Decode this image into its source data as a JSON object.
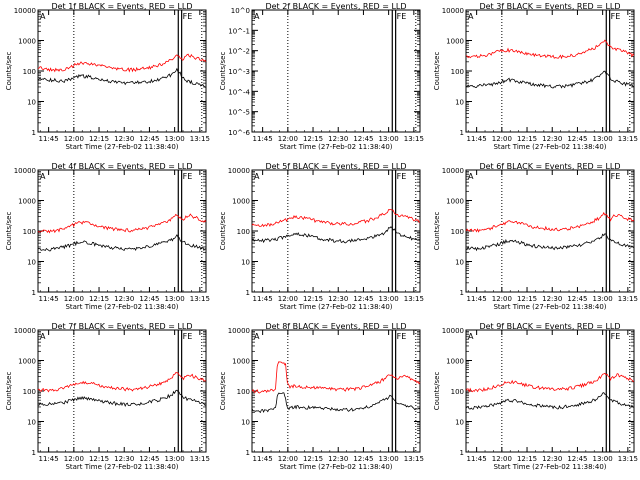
{
  "figure": {
    "xlabel": "Start Time (27-Feb-02 11:38:40)",
    "ylabel": "Counts/sec",
    "time_ticks": [
      "11:45",
      "12:00",
      "12:15",
      "12:30",
      "12:45",
      "13:00",
      "13:15"
    ],
    "log_ticks": [
      "1",
      "10",
      "100",
      "1000",
      "10000"
    ],
    "log_ticks_empty": [
      "10^0",
      "10^-1",
      "10^-2",
      "10^-3",
      "10^-4",
      "10^-5",
      "10^-6"
    ],
    "marker_labels": [
      "A",
      "FE",
      "E"
    ],
    "colors": {
      "events": "#000000",
      "lld": "#ff0000",
      "axes": "#000000"
    }
  },
  "chart_data": [
    {
      "type": "line",
      "title": "Det 1f BLACK = Events, RED = LLD",
      "x_range_min": [
        0,
        100
      ],
      "scale": "log",
      "ylim": [
        1,
        10000
      ],
      "series": [
        {
          "name": "BLACK = Events",
          "x": [
            0,
            5,
            10,
            15,
            20,
            25,
            30,
            35,
            40,
            45,
            50,
            55,
            60,
            65,
            70,
            75,
            80,
            82,
            84,
            86,
            88,
            90,
            95,
            100
          ],
          "values": [
            60,
            52,
            50,
            45,
            55,
            70,
            65,
            55,
            48,
            44,
            42,
            40,
            42,
            45,
            50,
            60,
            80,
            110,
            95,
            60,
            50,
            45,
            38,
            30
          ]
        },
        {
          "name": "RED = LLD",
          "x": [
            0,
            5,
            10,
            15,
            20,
            25,
            30,
            35,
            40,
            45,
            50,
            55,
            60,
            65,
            70,
            75,
            80,
            82,
            84,
            86,
            88,
            90,
            95,
            100
          ],
          "values": [
            130,
            115,
            110,
            105,
            140,
            190,
            180,
            160,
            135,
            120,
            115,
            110,
            115,
            125,
            145,
            180,
            260,
            330,
            290,
            220,
            310,
            330,
            260,
            200
          ]
        }
      ]
    },
    {
      "type": "line",
      "title": "Det 2f BLACK = Events, RED = LLD",
      "x_range_min": [
        0,
        100
      ],
      "scale": "log",
      "ylim": [
        1e-06,
        1
      ],
      "series": []
    },
    {
      "type": "line",
      "title": "Det 3f BLACK = Events, RED = LLD",
      "x_range_min": [
        0,
        100
      ],
      "scale": "log",
      "ylim": [
        1,
        10000
      ],
      "series": [
        {
          "name": "BLACK = Events",
          "x": [
            0,
            5,
            10,
            15,
            20,
            25,
            30,
            35,
            40,
            45,
            50,
            55,
            60,
            65,
            70,
            75,
            80,
            82,
            84,
            86,
            88,
            90,
            95,
            100
          ],
          "values": [
            32,
            30,
            34,
            36,
            42,
            52,
            48,
            40,
            36,
            34,
            32,
            31,
            33,
            36,
            42,
            50,
            70,
            95,
            80,
            55,
            48,
            45,
            38,
            32
          ]
        },
        {
          "name": "RED = LLD",
          "x": [
            0,
            5,
            10,
            15,
            20,
            25,
            30,
            35,
            40,
            45,
            50,
            55,
            60,
            65,
            70,
            75,
            80,
            82,
            84,
            86,
            88,
            90,
            95,
            100
          ],
          "values": [
            320,
            300,
            320,
            360,
            460,
            480,
            440,
            380,
            340,
            320,
            300,
            290,
            310,
            340,
            410,
            520,
            720,
            960,
            820,
            600,
            560,
            520,
            420,
            320
          ]
        }
      ]
    },
    {
      "type": "line",
      "title": "Det 4f BLACK = Events, RED = LLD",
      "x_range_min": [
        0,
        100
      ],
      "scale": "log",
      "ylim": [
        1,
        10000
      ],
      "series": [
        {
          "name": "BLACK = Events",
          "x": [
            0,
            5,
            10,
            15,
            20,
            25,
            30,
            35,
            40,
            45,
            50,
            55,
            60,
            65,
            70,
            75,
            80,
            82,
            84,
            86,
            88,
            90,
            95,
            100
          ],
          "values": [
            25,
            24,
            26,
            30,
            35,
            45,
            42,
            35,
            30,
            28,
            26,
            25,
            27,
            30,
            35,
            42,
            55,
            70,
            62,
            45,
            40,
            36,
            30,
            25
          ]
        },
        {
          "name": "RED = LLD",
          "x": [
            0,
            5,
            10,
            15,
            20,
            25,
            30,
            35,
            40,
            45,
            50,
            55,
            60,
            65,
            70,
            75,
            80,
            82,
            84,
            86,
            88,
            90,
            95,
            100
          ],
          "values": [
            100,
            95,
            100,
            115,
            150,
            190,
            180,
            150,
            125,
            115,
            110,
            105,
            110,
            125,
            150,
            190,
            260,
            340,
            300,
            230,
            290,
            330,
            260,
            200
          ]
        }
      ]
    },
    {
      "type": "line",
      "title": "Det 5f BLACK = Events, RED = LLD",
      "x_range_min": [
        0,
        100
      ],
      "scale": "log",
      "ylim": [
        1,
        10000
      ],
      "series": [
        {
          "name": "BLACK = Events",
          "x": [
            0,
            5,
            10,
            15,
            20,
            25,
            30,
            35,
            40,
            45,
            50,
            55,
            60,
            65,
            70,
            75,
            80,
            82,
            84,
            86,
            88,
            90,
            95,
            100
          ],
          "values": [
            50,
            48,
            50,
            55,
            65,
            80,
            78,
            68,
            58,
            52,
            48,
            46,
            48,
            52,
            60,
            72,
            95,
            130,
            115,
            85,
            75,
            68,
            58,
            48
          ]
        },
        {
          "name": "RED = LLD",
          "x": [
            0,
            5,
            10,
            15,
            20,
            25,
            30,
            35,
            40,
            45,
            50,
            55,
            60,
            65,
            70,
            75,
            80,
            82,
            84,
            86,
            88,
            90,
            95,
            100
          ],
          "values": [
            160,
            150,
            160,
            185,
            230,
            290,
            280,
            240,
            205,
            185,
            175,
            170,
            178,
            195,
            230,
            290,
            400,
            520,
            460,
            350,
            330,
            310,
            260,
            200
          ]
        }
      ]
    },
    {
      "type": "line",
      "title": "Det 6f BLACK = Events, RED = LLD",
      "x_range_min": [
        0,
        100
      ],
      "scale": "log",
      "ylim": [
        1,
        10000
      ],
      "series": [
        {
          "name": "BLACK = Events",
          "x": [
            0,
            5,
            10,
            15,
            20,
            25,
            30,
            35,
            40,
            45,
            50,
            55,
            60,
            65,
            70,
            75,
            80,
            82,
            84,
            86,
            88,
            90,
            95,
            100
          ],
          "values": [
            28,
            26,
            28,
            32,
            38,
            48,
            45,
            38,
            33,
            30,
            28,
            27,
            29,
            32,
            38,
            46,
            60,
            80,
            70,
            50,
            44,
            40,
            33,
            28
          ]
        },
        {
          "name": "RED = LLD",
          "x": [
            0,
            5,
            10,
            15,
            20,
            25,
            30,
            35,
            40,
            45,
            50,
            55,
            60,
            65,
            70,
            75,
            80,
            82,
            84,
            86,
            88,
            90,
            95,
            100
          ],
          "values": [
            110,
            105,
            110,
            125,
            160,
            200,
            190,
            160,
            135,
            125,
            118,
            112,
            118,
            132,
            160,
            200,
            280,
            360,
            320,
            240,
            300,
            340,
            270,
            210
          ]
        }
      ]
    },
    {
      "type": "line",
      "title": "Det 7f BLACK = Events, RED = LLD",
      "x_range_min": [
        0,
        100
      ],
      "scale": "log",
      "ylim": [
        1,
        10000
      ],
      "series": [
        {
          "name": "BLACK = Events",
          "x": [
            0,
            5,
            10,
            15,
            20,
            25,
            30,
            35,
            40,
            45,
            50,
            55,
            60,
            65,
            70,
            75,
            80,
            82,
            84,
            86,
            88,
            90,
            95,
            100
          ],
          "values": [
            38,
            36,
            38,
            42,
            50,
            62,
            58,
            50,
            44,
            40,
            37,
            35,
            37,
            41,
            48,
            58,
            78,
            105,
            90,
            65,
            58,
            52,
            44,
            36
          ]
        },
        {
          "name": "RED = LLD",
          "x": [
            0,
            5,
            10,
            15,
            20,
            25,
            30,
            35,
            40,
            45,
            50,
            55,
            60,
            65,
            70,
            75,
            80,
            82,
            84,
            86,
            88,
            90,
            95,
            100
          ],
          "values": [
            110,
            105,
            110,
            125,
            160,
            200,
            190,
            160,
            135,
            125,
            118,
            112,
            118,
            132,
            160,
            200,
            290,
            380,
            330,
            250,
            300,
            340,
            270,
            210
          ]
        }
      ]
    },
    {
      "type": "line",
      "title": "Det 8f BLACK = Events, RED = LLD",
      "x_range_min": [
        0,
        100
      ],
      "scale": "log",
      "ylim": [
        1,
        10000
      ],
      "series": [
        {
          "name": "BLACK = Events",
          "x": [
            0,
            5,
            10,
            14,
            15,
            16,
            19,
            20,
            21,
            22,
            25,
            30,
            35,
            40,
            45,
            50,
            55,
            60,
            65,
            70,
            75,
            80,
            82,
            84,
            86,
            88,
            90,
            95,
            100
          ],
          "values": [
            24,
            22,
            24,
            26,
            60,
            80,
            80,
            60,
            30,
            27,
            30,
            30,
            28,
            27,
            26,
            25,
            24,
            25,
            27,
            32,
            40,
            55,
            70,
            62,
            45,
            40,
            36,
            30,
            25
          ]
        },
        {
          "name": "RED = LLD",
          "x": [
            0,
            5,
            10,
            14,
            15,
            16,
            19,
            20,
            21,
            22,
            25,
            30,
            35,
            40,
            45,
            50,
            55,
            60,
            65,
            70,
            75,
            80,
            82,
            84,
            86,
            88,
            90,
            95,
            100
          ],
          "values": [
            100,
            95,
            100,
            110,
            700,
            900,
            900,
            700,
            180,
            140,
            145,
            140,
            130,
            125,
            120,
            115,
            112,
            115,
            125,
            150,
            190,
            270,
            350,
            310,
            230,
            280,
            320,
            250,
            190
          ]
        }
      ]
    },
    {
      "type": "line",
      "title": "Det 9f BLACK = Events, RED = LLD",
      "x_range_min": [
        0,
        100
      ],
      "scale": "log",
      "ylim": [
        1,
        10000
      ],
      "series": [
        {
          "name": "BLACK = Events",
          "x": [
            0,
            5,
            10,
            15,
            20,
            25,
            30,
            35,
            40,
            45,
            50,
            55,
            60,
            65,
            70,
            75,
            80,
            82,
            84,
            86,
            88,
            90,
            95,
            100
          ],
          "values": [
            30,
            28,
            30,
            34,
            40,
            50,
            47,
            40,
            35,
            32,
            30,
            29,
            31,
            34,
            40,
            48,
            63,
            85,
            74,
            53,
            47,
            42,
            35,
            29
          ]
        },
        {
          "name": "RED = LLD",
          "x": [
            0,
            5,
            10,
            15,
            20,
            25,
            30,
            35,
            40,
            45,
            50,
            55,
            60,
            65,
            70,
            75,
            80,
            82,
            84,
            86,
            88,
            90,
            95,
            100
          ],
          "values": [
            110,
            105,
            110,
            125,
            160,
            200,
            190,
            160,
            135,
            125,
            118,
            112,
            118,
            132,
            160,
            200,
            280,
            360,
            320,
            240,
            300,
            340,
            270,
            210
          ]
        }
      ]
    }
  ]
}
